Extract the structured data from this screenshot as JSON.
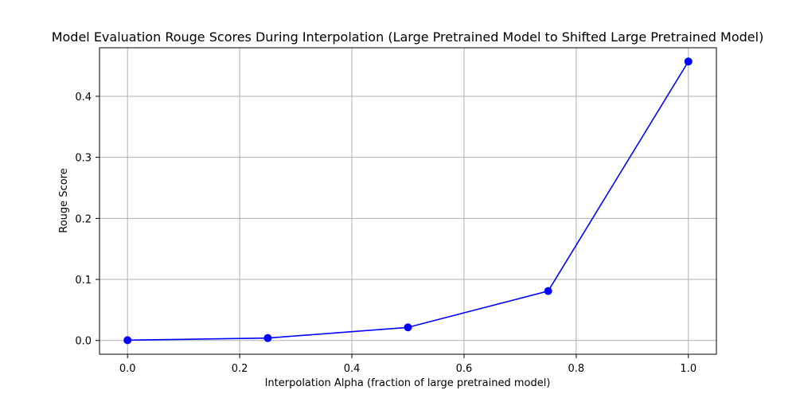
{
  "chart_data": {
    "type": "line",
    "title": "Model Evaluation Rouge Scores During Interpolation (Large Pretrained Model to Shifted Large Pretrained Model)",
    "xlabel": "Interpolation Alpha (fraction of large pretrained model)",
    "ylabel": "Rouge Score",
    "x": [
      0.0,
      0.25,
      0.5,
      0.75,
      1.0
    ],
    "series": [
      {
        "values": [
          0.0005,
          0.004,
          0.0215,
          0.081,
          0.457
        ],
        "color": "#0000ff",
        "marker": "circle"
      }
    ],
    "xlim": [
      -0.05,
      1.05
    ],
    "ylim": [
      -0.0225,
      0.4795
    ],
    "xticks": [
      0.0,
      0.2,
      0.4,
      0.6,
      0.8,
      1.0
    ],
    "xtick_labels": [
      "0.0",
      "0.2",
      "0.4",
      "0.6",
      "0.8",
      "1.0"
    ],
    "yticks": [
      0.0,
      0.1,
      0.2,
      0.3,
      0.4
    ],
    "ytick_labels": [
      "0.0",
      "0.1",
      "0.2",
      "0.3",
      "0.4"
    ],
    "grid": true,
    "legend": false
  }
}
